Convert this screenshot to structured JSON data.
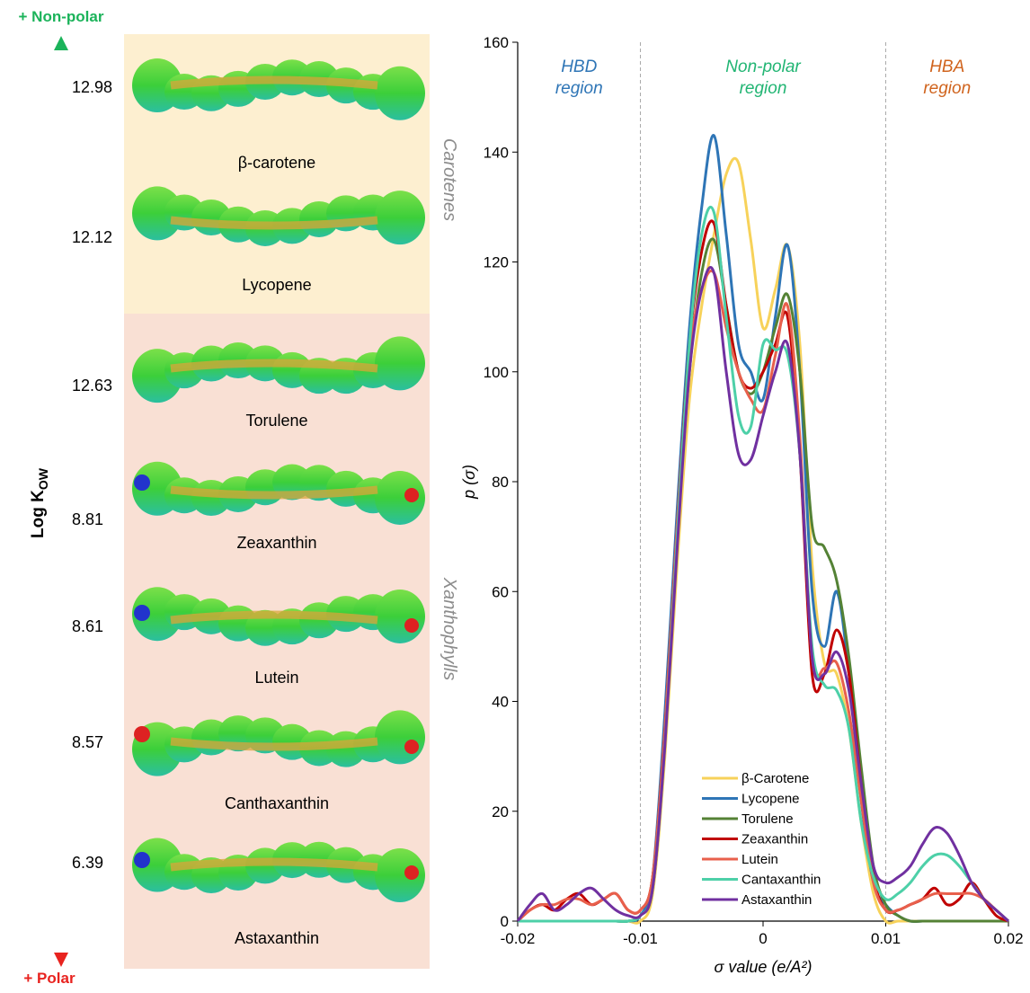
{
  "left_panel": {
    "top_label": "+ Non-polar",
    "bottom_label": "+ Polar",
    "axis_label": {
      "main": "Log K",
      "sub": "OW"
    },
    "groups": [
      {
        "name": "Carotenes",
        "molecules": [
          {
            "name": "β-carotene",
            "log_kow": 12.98
          },
          {
            "name": "Lycopene",
            "log_kow": 12.12
          }
        ]
      },
      {
        "name": "Xanthophylls",
        "molecules": [
          {
            "name": "Torulene",
            "log_kow": 12.63
          },
          {
            "name": "Zeaxanthin",
            "log_kow": 8.81
          },
          {
            "name": "Lutein",
            "log_kow": 8.61
          },
          {
            "name": "Canthaxanthin",
            "log_kow": 8.57
          },
          {
            "name": "Astaxanthin",
            "log_kow": 6.39
          }
        ]
      }
    ]
  },
  "chart_data": {
    "type": "line",
    "x_label": "σ value (e/A²)",
    "y_label": "p (σ)",
    "xlim": [
      -0.02,
      0.02
    ],
    "xticks": [
      -0.02,
      -0.01,
      0,
      0.01,
      0.02
    ],
    "ylim": [
      0,
      160
    ],
    "yticks": [
      0,
      20,
      40,
      60,
      80,
      100,
      120,
      140,
      160
    ],
    "region_boundaries": [
      -0.01,
      0.01
    ],
    "annotations": [
      {
        "lines": [
          "HBD",
          "region"
        ],
        "color": "#2e75b6"
      },
      {
        "lines": [
          "Non-polar",
          "region"
        ],
        "color": "#21b573"
      },
      {
        "lines": [
          "HBA",
          "region"
        ],
        "color": "#d0641e"
      }
    ],
    "legend": "bottom-center",
    "x": [
      -0.02,
      -0.019,
      -0.018,
      -0.017,
      -0.016,
      -0.015,
      -0.014,
      -0.013,
      -0.012,
      -0.011,
      -0.01,
      -0.009,
      -0.008,
      -0.007,
      -0.006,
      -0.005,
      -0.004,
      -0.003,
      -0.002,
      -0.001,
      0,
      0.001,
      0.002,
      0.003,
      0.004,
      0.005,
      0.006,
      0.007,
      0.008,
      0.009,
      0.01,
      0.011,
      0.012,
      0.013,
      0.014,
      0.015,
      0.016,
      0.017,
      0.018,
      0.019,
      0.02
    ],
    "series": [
      {
        "name": "β-Carotene",
        "color": "#f7d25a",
        "values": [
          0,
          0,
          0,
          0,
          0,
          0,
          0,
          0,
          0,
          0,
          0,
          5,
          30,
          65,
          95,
          112,
          125,
          136,
          138,
          124,
          108,
          115,
          123,
          105,
          65,
          47,
          45,
          35,
          18,
          5,
          0,
          0,
          0,
          0,
          0,
          0,
          0,
          0,
          0,
          0,
          0
        ]
      },
      {
        "name": "Lycopene",
        "color": "#2e75b6",
        "values": [
          0,
          0,
          0,
          0,
          0,
          0,
          0,
          0,
          0,
          0,
          1,
          8,
          38,
          75,
          108,
          130,
          143,
          125,
          105,
          100,
          95,
          110,
          123,
          100,
          60,
          50,
          60,
          45,
          22,
          7,
          3,
          1,
          0,
          0,
          0,
          0,
          0,
          0,
          0,
          0,
          0
        ]
      },
      {
        "name": "Torulene",
        "color": "#548235",
        "values": [
          0,
          0,
          0,
          0,
          0,
          0,
          0,
          0,
          0,
          0,
          1,
          6,
          33,
          70,
          100,
          118,
          124,
          112,
          100,
          96,
          100,
          108,
          114,
          100,
          72,
          68,
          62,
          48,
          28,
          10,
          3,
          1,
          0,
          0,
          0,
          0,
          0,
          0,
          0,
          0,
          0
        ]
      },
      {
        "name": "Zeaxanthin",
        "color": "#c00000",
        "values": [
          0,
          2,
          3,
          2,
          4,
          5,
          3,
          4,
          5,
          2,
          2,
          8,
          35,
          72,
          105,
          122,
          127,
          112,
          100,
          97,
          100,
          105,
          110,
          85,
          45,
          45,
          53,
          45,
          25,
          8,
          2,
          2,
          3,
          4,
          6,
          3,
          4,
          7,
          4,
          1,
          0
        ]
      },
      {
        "name": "Lutein",
        "color": "#e8604c",
        "values": [
          0,
          2,
          3,
          3,
          4,
          4,
          3,
          4,
          5,
          2,
          2,
          8,
          35,
          72,
          103,
          115,
          118,
          108,
          100,
          95,
          93,
          103,
          112,
          88,
          48,
          46,
          47,
          38,
          22,
          7,
          2,
          2,
          3,
          4,
          5,
          5,
          5,
          5,
          4,
          2,
          0
        ]
      },
      {
        "name": "Cantaxanthin",
        "color": "#4dd0a8",
        "values": [
          0,
          0,
          0,
          0,
          0,
          0,
          0,
          0,
          0,
          0,
          1,
          6,
          32,
          70,
          105,
          125,
          129,
          110,
          92,
          90,
          105,
          104,
          103,
          85,
          50,
          43,
          42,
          35,
          18,
          8,
          4,
          5,
          7,
          10,
          12,
          12,
          10,
          7,
          4,
          2,
          0
        ]
      },
      {
        "name": "Astaxanthin",
        "color": "#7030a0",
        "values": [
          0,
          3,
          5,
          2,
          3,
          5,
          6,
          4,
          2,
          1,
          1,
          6,
          32,
          68,
          100,
          115,
          118,
          100,
          85,
          84,
          92,
          100,
          105,
          85,
          48,
          45,
          49,
          42,
          25,
          10,
          7,
          8,
          10,
          14,
          17,
          16,
          12,
          7,
          4,
          2,
          0
        ]
      }
    ]
  }
}
